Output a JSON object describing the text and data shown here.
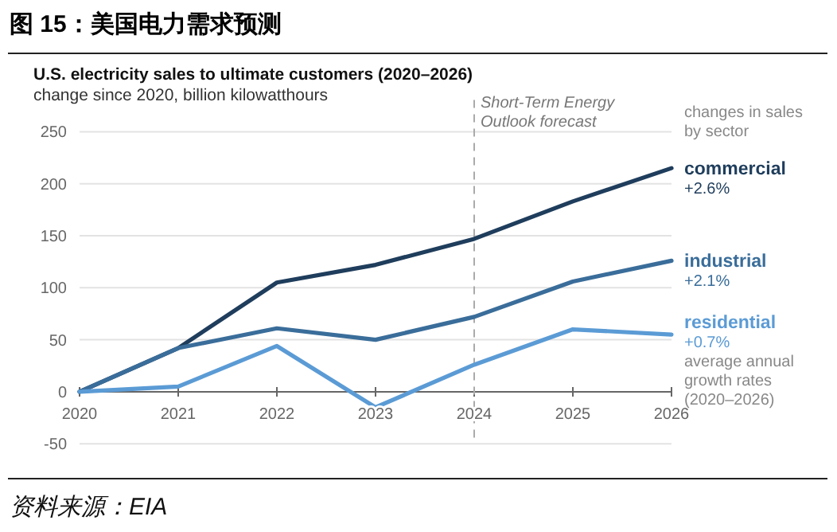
{
  "chart_data": {
    "type": "line",
    "title": "图 15：美国电力需求预测",
    "subtitle": "U.S. electricity sales to ultimate customers (2020–2026)",
    "ylabel": "change since 2020, billion kilowatthours",
    "legend_title": "changes in sales by sector",
    "x": [
      2020,
      2021,
      2022,
      2023,
      2024,
      2025,
      2026
    ],
    "series": [
      {
        "name": "commercial",
        "color": "#1f3d5c",
        "values": [
          0,
          42,
          105,
          122,
          147,
          183,
          215
        ]
      },
      {
        "name": "industrial",
        "color": "#3a6d9a",
        "values": [
          0,
          42,
          61,
          50,
          72,
          106,
          126
        ]
      },
      {
        "name": "residential",
        "color": "#5b9bd5",
        "values": [
          0,
          5,
          44,
          -15,
          26,
          60,
          55
        ]
      }
    ],
    "xlim": [
      2020,
      2026
    ],
    "xticks": [
      2020,
      2021,
      2022,
      2023,
      2024,
      2025,
      2026
    ],
    "ylim": [
      -50,
      250
    ],
    "yticks": [
      -50,
      0,
      50,
      100,
      150,
      200,
      250
    ],
    "grid": "y",
    "line_style": "solid",
    "ref_lines": [
      {
        "axis": "x",
        "value": 2024,
        "label": "Short-Term Energy Outlook forecast",
        "line_style": "dashed",
        "color": "#aaaaaa"
      }
    ],
    "annotations": [
      "+2.6%",
      "+2.1%",
      "+0.7%",
      "average annual growth rates (2020–2026)",
      "资料来源：EIA"
    ]
  }
}
